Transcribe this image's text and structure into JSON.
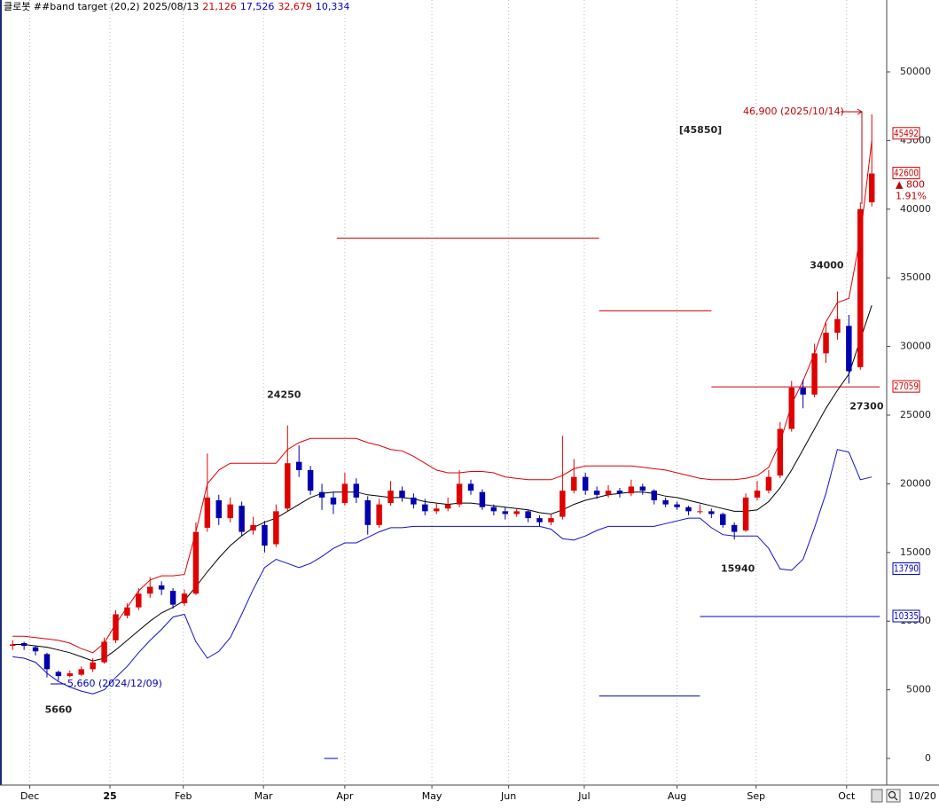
{
  "chart_data": {
    "type": "candlestick",
    "header": {
      "label": "클로봇 ##band target (20,2) 2025/08/13",
      "values": [
        {
          "text": "21,126",
          "color": "#d00000"
        },
        {
          "text": "17,526",
          "color": "#0000c0"
        },
        {
          "text": "32,679",
          "color": "#d00000"
        },
        {
          "text": "10,334",
          "color": "#0000c0"
        }
      ]
    },
    "up_color": "#e00000",
    "down_color": "#0000b0",
    "open": [
      8200,
      8400,
      8100,
      7600,
      6300,
      6000,
      6100,
      6500,
      7000,
      8600,
      10400,
      11000,
      12000,
      12600,
      12200,
      11300,
      12000,
      16800,
      18800,
      17500,
      18400,
      16600,
      17000,
      15600,
      18200,
      21600,
      21000,
      19400,
      19000,
      18600,
      20000,
      18800,
      17000,
      18600,
      19500,
      19000,
      18500,
      18000,
      18200,
      18500,
      20000,
      19400,
      18300,
      18000,
      17800,
      18000,
      17500,
      17200,
      17600,
      19500,
      20500,
      19500,
      19200,
      19500,
      19300,
      19800,
      19500,
      18800,
      18500,
      18300,
      18000,
      18000,
      17800,
      17000,
      16600,
      19000,
      19500,
      20600,
      24000,
      27000,
      26500,
      29500,
      31000,
      31500,
      28500,
      40500
    ],
    "high": [
      8600,
      8500,
      8200,
      7700,
      6400,
      6400,
      6700,
      7300,
      8800,
      10800,
      11300,
      12400,
      13200,
      12900,
      12400,
      12300,
      17200,
      22200,
      19200,
      19000,
      18700,
      17600,
      17300,
      18500,
      24250,
      22800,
      21300,
      20000,
      19400,
      20800,
      20400,
      19100,
      18900,
      20200,
      19800,
      19300,
      18900,
      18600,
      19000,
      21000,
      20300,
      19600,
      18500,
      18300,
      18200,
      18100,
      17700,
      17800,
      23500,
      21800,
      20800,
      19800,
      19900,
      19700,
      20300,
      20000,
      19600,
      19000,
      18700,
      18400,
      18500,
      18200,
      17900,
      17200,
      19300,
      20200,
      21000,
      24500,
      27500,
      27600,
      30200,
      31700,
      34000,
      32300,
      40500,
      46900
    ],
    "low": [
      7900,
      7900,
      7500,
      5900,
      5660,
      5900,
      6000,
      6300,
      6900,
      8400,
      10200,
      10800,
      11700,
      11900,
      10900,
      11100,
      11900,
      16500,
      17000,
      17200,
      16200,
      16300,
      15000,
      15400,
      18000,
      20500,
      19200,
      18100,
      17800,
      18400,
      18600,
      16300,
      16800,
      18400,
      18700,
      18200,
      17700,
      17800,
      18000,
      18300,
      19200,
      18100,
      17700,
      17400,
      17600,
      17200,
      16900,
      17000,
      17400,
      19300,
      19200,
      18900,
      19000,
      19000,
      19100,
      19200,
      18500,
      18300,
      18100,
      17700,
      17800,
      17500,
      16800,
      15940,
      16500,
      18800,
      19300,
      20400,
      23800,
      25500,
      26300,
      28800,
      30500,
      27300,
      28300,
      40200
    ],
    "close": [
      8300,
      8200,
      7800,
      6500,
      6000,
      6200,
      6500,
      7000,
      8500,
      10500,
      11000,
      12000,
      12500,
      12300,
      11200,
      12000,
      16500,
      19000,
      17500,
      18500,
      16500,
      17000,
      15500,
      18000,
      21500,
      21000,
      19500,
      19000,
      18500,
      20000,
      19000,
      17000,
      18500,
      19500,
      19000,
      18500,
      18000,
      18200,
      18500,
      20000,
      19500,
      18300,
      18000,
      17800,
      18000,
      17500,
      17200,
      17500,
      19500,
      20500,
      19500,
      19200,
      19500,
      19300,
      19800,
      19500,
      18800,
      18500,
      18300,
      18000,
      18000,
      17800,
      17000,
      16500,
      19000,
      19500,
      20500,
      24000,
      27000,
      26500,
      29500,
      31000,
      32000,
      28200,
      40000,
      42600
    ],
    "series": [
      {
        "color": "#e00000",
        "values": [
          8900,
          8900,
          8800,
          8700,
          8600,
          8400,
          8000,
          7700,
          8400,
          9800,
          11000,
          12200,
          13000,
          13300,
          13300,
          13400,
          16500,
          20000,
          21000,
          21500,
          21500,
          21500,
          21500,
          21500,
          22500,
          23000,
          23300,
          23300,
          23300,
          23300,
          23300,
          23000,
          22800,
          22500,
          22400,
          22000,
          21500,
          21000,
          20800,
          20800,
          20900,
          20900,
          20800,
          20500,
          20400,
          20300,
          20300,
          20300,
          20600,
          21100,
          21300,
          21300,
          21300,
          21300,
          21300,
          21200,
          21100,
          21000,
          20800,
          20600,
          20400,
          20300,
          20300,
          20300,
          20400,
          20600,
          21200,
          23000,
          25800,
          27500,
          29500,
          31800,
          33200,
          33500,
          38000,
          45000
        ]
      },
      {
        "color": "#000000",
        "values": [
          8300,
          8300,
          8200,
          8100,
          7900,
          7700,
          7400,
          7100,
          7300,
          7900,
          8600,
          9300,
          10000,
          10600,
          11000,
          11500,
          12500,
          13600,
          14600,
          15500,
          16200,
          16800,
          17200,
          17500,
          18000,
          18500,
          19000,
          19300,
          19400,
          19400,
          19400,
          19200,
          19100,
          19000,
          19000,
          18900,
          18700,
          18600,
          18500,
          18600,
          18600,
          18500,
          18400,
          18300,
          18200,
          18100,
          17900,
          17800,
          18100,
          18500,
          18800,
          19000,
          19200,
          19300,
          19400,
          19400,
          19300,
          19100,
          19000,
          18800,
          18600,
          18400,
          18200,
          18000,
          18000,
          18100,
          18700,
          19700,
          21000,
          22500,
          24000,
          25500,
          26800,
          28000,
          30500,
          33000
        ]
      },
      {
        "color": "#1010d0",
        "values": [
          7400,
          7300,
          7000,
          6200,
          5600,
          5200,
          4900,
          4700,
          5000,
          5900,
          6700,
          7700,
          8600,
          9400,
          10300,
          10500,
          8500,
          7300,
          7800,
          8800,
          10500,
          12300,
          13900,
          14500,
          14200,
          13900,
          14200,
          14700,
          15300,
          15700,
          15700,
          16100,
          16500,
          16800,
          16800,
          16900,
          16900,
          16900,
          16900,
          16900,
          16900,
          16900,
          16900,
          16900,
          16900,
          16900,
          16900,
          16700,
          16000,
          15900,
          16200,
          16600,
          16900,
          16900,
          16900,
          16900,
          16900,
          17100,
          17300,
          17500,
          17500,
          16800,
          16300,
          16200,
          16200,
          16200,
          15300,
          13800,
          13700,
          14500,
          16800,
          19300,
          22500,
          22300,
          20300,
          20500
        ]
      }
    ],
    "levels": [
      {
        "value": 37900,
        "from": 28.3,
        "to": 51.2,
        "color": "#d00000"
      },
      {
        "value": 32600,
        "from": 51.2,
        "to": 61.0,
        "color": "#d00000"
      },
      {
        "value": 27059,
        "from": 61.0,
        "to": 75.7,
        "color": "#d00000"
      },
      {
        "value": 10335,
        "from": 60.0,
        "to": 75.7,
        "color": "#0000c0"
      },
      {
        "value": 4550,
        "from": 51.2,
        "to": 60.0,
        "color": "#0000c0"
      },
      {
        "value": 0,
        "from": 27.2,
        "to": 28.4,
        "color": "#0000c0"
      }
    ],
    "markers": [
      {
        "value": 45492,
        "color": "#d00000"
      },
      {
        "value": 42600,
        "color": "#d00000"
      },
      {
        "value": 27059,
        "color": "#d00000"
      },
      {
        "value": 13790,
        "color": "#0000c0"
      },
      {
        "value": 10335,
        "color": "#0000c0"
      }
    ],
    "change": "▲ 800",
    "change_pct": "1.91%",
    "notes": {
      "high_mark": "[45850]",
      "max_label": "46,900 (2025/10/14)",
      "min_label": "5,660 (2024/12/09)"
    },
    "xlim": [
      -1.1,
      76.3
    ],
    "ylim": [
      -1938,
      55233
    ],
    "yticks": [
      0,
      5000,
      10000,
      15000,
      20000,
      25000,
      30000,
      35000,
      40000,
      45000,
      50000
    ],
    "xticks": [
      {
        "value": 1.5,
        "label": "Dec"
      },
      {
        "value": 8.5,
        "label": "25"
      },
      {
        "value": 14.9,
        "label": "Feb"
      },
      {
        "value": 21.9,
        "label": "Mar"
      },
      {
        "value": 29.0,
        "label": "Apr"
      },
      {
        "value": 36.6,
        "label": "May"
      },
      {
        "value": 43.3,
        "label": "Jun"
      },
      {
        "value": 49.9,
        "label": "Jul"
      },
      {
        "value": 58.0,
        "label": "Aug"
      },
      {
        "value": 64.9,
        "label": "Sep"
      },
      {
        "value": 72.8,
        "label": "Oct"
      }
    ],
    "date_label": "10/20"
  }
}
